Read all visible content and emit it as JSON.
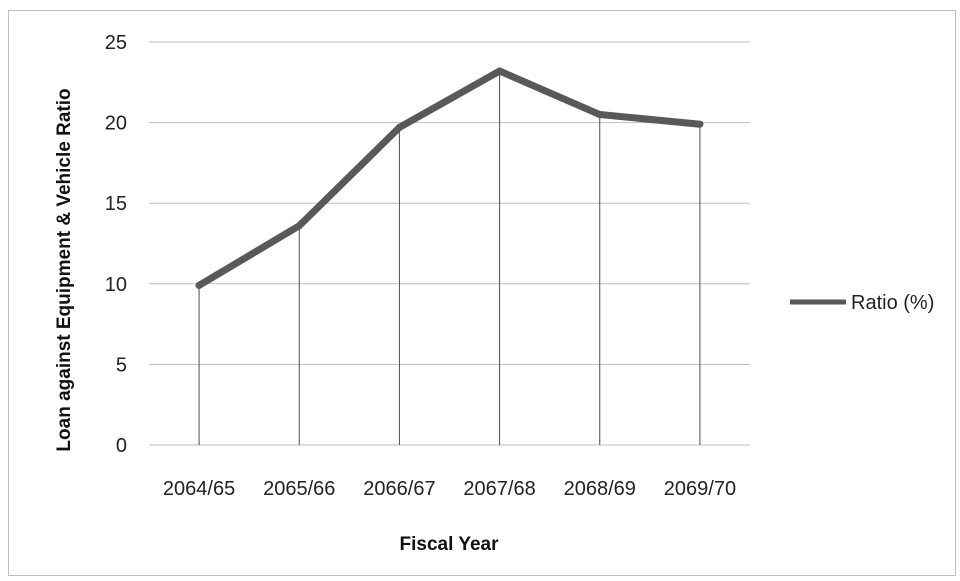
{
  "chart_data": {
    "type": "line",
    "categories": [
      "2064/65",
      "2065/66",
      "2066/67",
      "2067/68",
      "2068/69",
      "2069/70"
    ],
    "series": [
      {
        "name": "Ratio (%)",
        "values": [
          9.9,
          13.6,
          19.7,
          23.2,
          20.5,
          19.9
        ],
        "color": "#595959"
      }
    ],
    "title": "",
    "xlabel": "Fiscal Year",
    "ylabel": "Loan against Equipment & Vehicle Ratio",
    "ylim": [
      0,
      25
    ],
    "yticks": [
      0,
      5,
      10,
      15,
      20,
      25
    ],
    "grid": "horizontal",
    "drop_lines": true,
    "legend_position": "right"
  },
  "colors": {
    "gridline": "#bfbfbf",
    "drop_line": "#4d4d4d",
    "frame_border": "#bfbfbf"
  }
}
